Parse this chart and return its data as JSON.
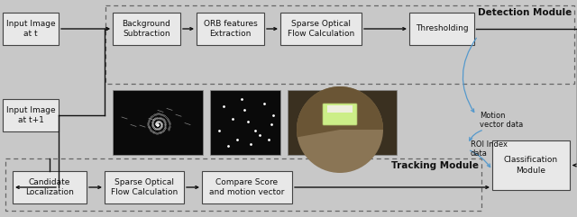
{
  "bg_color": "#c8c8c8",
  "box_face": "#e8e8e8",
  "box_edge": "#444444",
  "dash_edge": "#666666",
  "arrow_col": "#111111",
  "blue_col": "#5599cc",
  "text_col": "#111111",
  "detection_label": "Detection Module",
  "tracking_label": "Tracking Module",
  "lbl_input_t": "Input Image\nat t",
  "lbl_input_t1": "Input Image\nat t+1",
  "lbl_bg_sub": "Background\nSubtraction",
  "lbl_orb": "ORB features\nExtraction",
  "lbl_sparse_top": "Sparse Optical\nFlow Calculation",
  "lbl_thresh": "Thresholding",
  "lbl_cand": "Candidate\nLocalization",
  "lbl_sparse_bot": "Sparse Optical\nFlow Calculation",
  "lbl_compare": "Compare Score\nand motion vector",
  "lbl_classif": "Classification\nModule",
  "lbl_motion": "Motion\nvector data",
  "lbl_roi": "ROI Index\ndata"
}
